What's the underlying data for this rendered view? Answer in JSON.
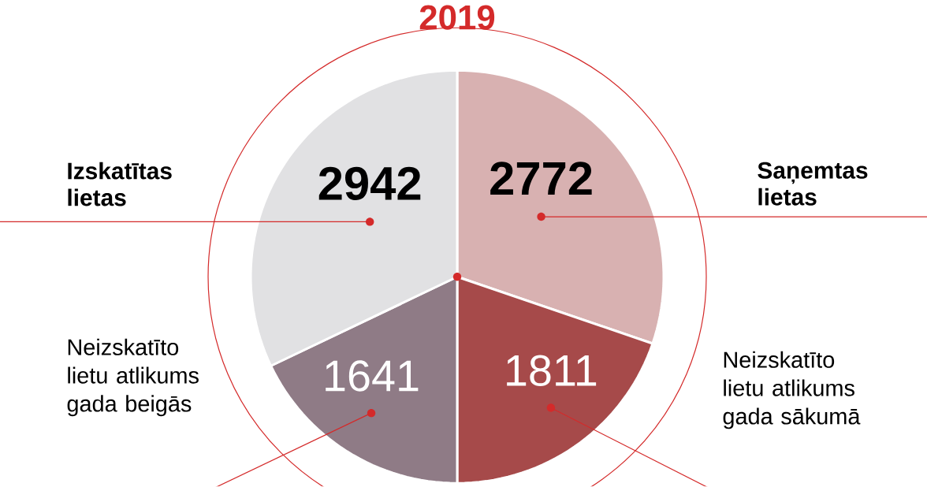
{
  "chart_data": {
    "type": "pie",
    "title": "2019",
    "categories": [
      "Saņemtas lietas",
      "Neizskatīto lietu atlikums gada sākumā",
      "Neizskatīto lietu atlikums gada beigās",
      "Izskatītas lietas"
    ],
    "values": [
      2772,
      1811,
      1641,
      2942
    ],
    "colors": [
      "#d8b1b1",
      "#a64a4a",
      "#8f7b86",
      "#e1e1e3"
    ],
    "data_labels": true
  }
}
